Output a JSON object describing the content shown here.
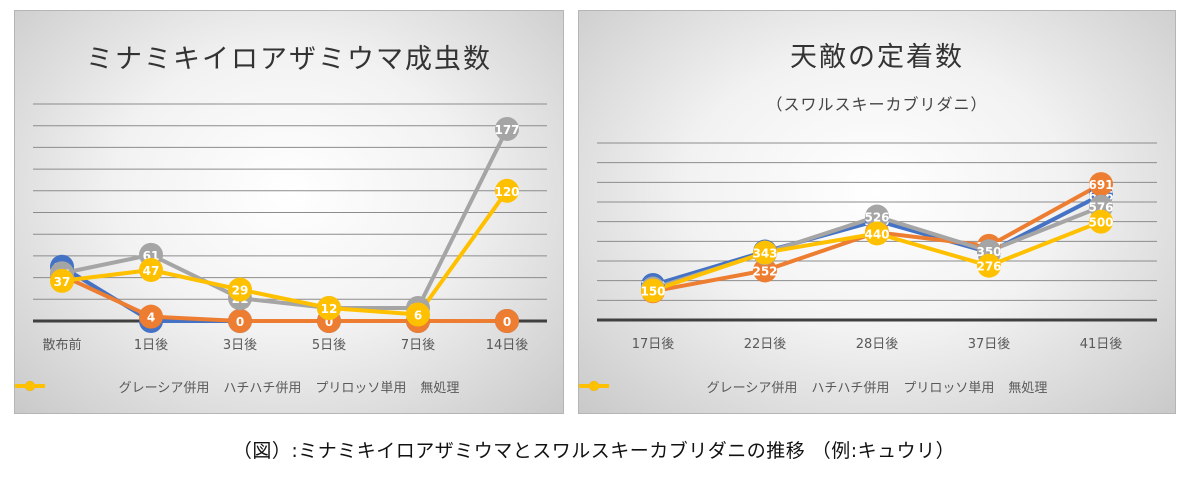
{
  "caption": "（図）:ミナミキイロアザミウマとスワルスキーカブリダニの推移 （例:キュウリ）",
  "chart_data": [
    {
      "type": "line",
      "title": "ミナミキイロアザミウマ成虫数",
      "subtitle": "",
      "xlabel": "",
      "ylabel": "",
      "categories": [
        "散布前",
        "1日後",
        "3日後",
        "5日後",
        "7日後",
        "14日後"
      ],
      "ylim": [
        0,
        200
      ],
      "grid": true,
      "legend": "bottom",
      "series": [
        {
          "name": "グレーシア併用",
          "color": "#4472c4",
          "values": [
            50,
            0,
            0,
            0,
            0,
            0
          ],
          "labels": [
            "50",
            "0",
            "0",
            "0",
            "0",
            "0"
          ]
        },
        {
          "name": "ハチハチ併用",
          "color": "#ed7d31",
          "values": [
            42,
            4,
            0,
            0,
            0,
            0
          ],
          "labels": [
            "42",
            "4",
            "0",
            "0",
            "0",
            "0"
          ]
        },
        {
          "name": "プリロッソ単用",
          "color": "#a5a5a5",
          "values": [
            44,
            61,
            21,
            12,
            12,
            177
          ],
          "labels": [
            "44",
            "61",
            "21",
            "12",
            "12",
            "177"
          ]
        },
        {
          "name": "無処理",
          "color": "#ffc000",
          "values": [
            37,
            47,
            29,
            12,
            6,
            120
          ],
          "labels": [
            "37",
            "47",
            "29",
            "12",
            "6",
            "120"
          ]
        }
      ]
    },
    {
      "type": "line",
      "title": "天敵の定着数",
      "subtitle": "（スワルスキーカブリダニ）",
      "xlabel": "",
      "ylabel": "",
      "categories": [
        "17日後",
        "22日後",
        "28日後",
        "37日後",
        "41日後"
      ],
      "ylim": [
        0,
        900
      ],
      "grid": true,
      "legend": "bottom",
      "series": [
        {
          "name": "グレーシア併用",
          "color": "#4472c4",
          "values": [
            178,
            348,
            505,
            344,
            636
          ],
          "labels": [
            "178",
            "348",
            "505",
            "344",
            "636"
          ]
        },
        {
          "name": "ハチハチ併用",
          "color": "#ed7d31",
          "values": [
            146,
            252,
            446,
            377,
            691
          ],
          "labels": [
            "146",
            "252",
            "446",
            "377",
            "691"
          ]
        },
        {
          "name": "プリロッソ単用",
          "color": "#a5a5a5",
          "values": [
            160,
            340,
            526,
            350,
            576
          ],
          "labels": [
            "160",
            "340",
            "526",
            "350",
            "576"
          ]
        },
        {
          "name": "無処理",
          "color": "#ffc000",
          "values": [
            150,
            343,
            440,
            276,
            500
          ],
          "labels": [
            "150",
            "343",
            "440",
            "276",
            "500"
          ]
        }
      ]
    }
  ]
}
